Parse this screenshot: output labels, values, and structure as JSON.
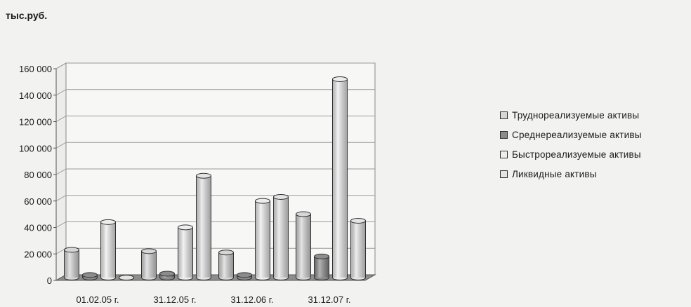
{
  "unit_label": "тыс.руб.",
  "chart_data": {
    "type": "bar",
    "categories": [
      "01.02.05 г.",
      "31.12.05 г.",
      "31.12.06 г.",
      "31.12.07 г."
    ],
    "series": [
      {
        "name": "Труднореализуемые активы",
        "values": [
          22000,
          21000,
          20000,
          49000
        ],
        "color": "#d6d6d6"
      },
      {
        "name": "Среднереализуемые активы",
        "values": [
          3000,
          4000,
          3000,
          17000
        ],
        "color": "#8c8c8c"
      },
      {
        "name": "Быстрореализуемые активы",
        "values": [
          43000,
          39000,
          59000,
          151000
        ],
        "color": "#ededed"
      },
      {
        "name": "Ликвидные активы",
        "values": [
          1000,
          78000,
          62000,
          44000
        ],
        "color": "#e4e4e4"
      }
    ],
    "ylim": [
      0,
      160000
    ],
    "yticks": [
      "0",
      "20 000",
      "40 000",
      "60 000",
      "80 000",
      "100 000",
      "120 000",
      "140 000",
      "160 000"
    ],
    "grid": true,
    "legend_position": "right"
  }
}
